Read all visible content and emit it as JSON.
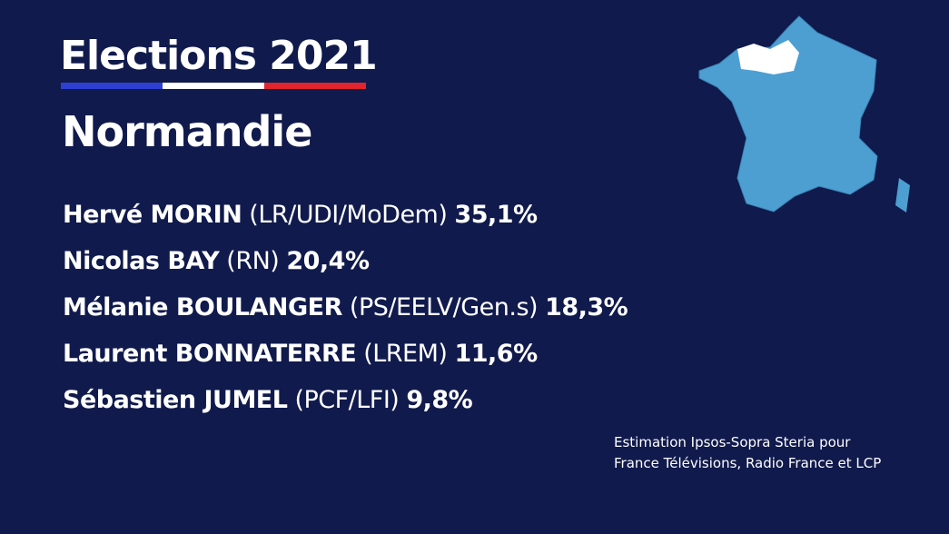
{
  "header": {
    "title": "Elections 2021",
    "region": "Normandie"
  },
  "candidates": [
    {
      "name": "Hervé MORIN",
      "party": "(LR/UDI/MoDem)",
      "score": "35,1%"
    },
    {
      "name": "Nicolas BAY",
      "party": "(RN)",
      "score": "20,4%"
    },
    {
      "name": "Mélanie BOULANGER",
      "party": "(PS/EELV/Gen.s)",
      "score": "18,3%"
    },
    {
      "name": "Laurent BONNATERRE",
      "party": "(LREM)",
      "score": "11,6%"
    },
    {
      "name": "Sébastien JUMEL",
      "party": "(PCF/LFI)",
      "score": "9,8%"
    }
  ],
  "source": [
    "Estimation Ipsos-Sopra Steria pour",
    "France Télévisions, Radio France et LCP"
  ]
}
